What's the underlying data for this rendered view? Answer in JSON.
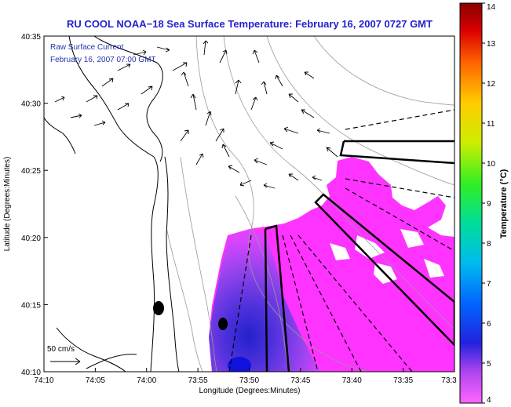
{
  "title": "RU COOL  NOAA−18  Sea Surface Temperature:  February 16, 2007 0727 GMT",
  "legend": {
    "line1": "Raw Surface Current",
    "line2": "February 16, 2007 07:00 GMT"
  },
  "scale_label": "50 cm/s",
  "colorbar": {
    "title": "Temperature (°C)",
    "min": 4,
    "max": 14,
    "ticks": [
      "4",
      "5",
      "6",
      "7",
      "8",
      "9",
      "10",
      "11",
      "12",
      "13",
      "14"
    ],
    "colors": [
      "#ff55ff",
      "#8833ee",
      "#2222ee",
      "#0077ff",
      "#00bbee",
      "#00ddaa",
      "#22ee22",
      "#ccee00",
      "#ffdd00",
      "#ff7700",
      "#ee0000",
      "#880000"
    ]
  },
  "axes": {
    "xlabel": "Longitude (Degrees:Minutes)",
    "ylabel": "Latitude (Degrees:Minutes)",
    "xticks": [
      "74:10",
      "74:05",
      "74:00",
      "73:55",
      "73:50",
      "73:45",
      "73:40",
      "73:35",
      "73:3"
    ],
    "yticks": [
      "40:35",
      "40:30",
      "40:25",
      "40:20",
      "40:15",
      "40:10"
    ]
  },
  "colors": {
    "land": "#ffffff",
    "coast": "#000000",
    "contour": "#999999",
    "sst_warm": "#ff33ff",
    "sst_mid": "#aa44ee",
    "sst_cool": "#4433dd",
    "title": "#2222cc"
  }
}
